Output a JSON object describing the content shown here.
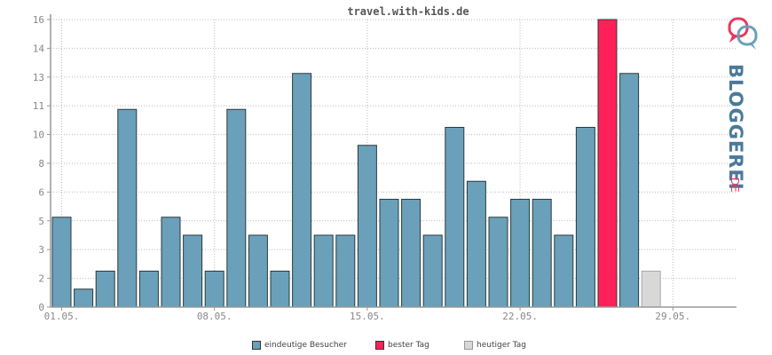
{
  "chart_data": {
    "type": "bar",
    "title": "travel.with-kids.de",
    "y_ticks": [
      "0",
      "2",
      "3",
      "5",
      "6",
      "8",
      "10",
      "11",
      "13",
      "14",
      "16"
    ],
    "ylim": [
      0,
      16
    ],
    "x_tick_labels": [
      "01.05.",
      "08.05.",
      "15.05.",
      "22.05.",
      "29.05."
    ],
    "categories": [
      "01.05.",
      "02.05.",
      "03.05.",
      "04.05.",
      "05.05.",
      "06.05.",
      "07.05.",
      "08.05.",
      "09.05.",
      "10.05.",
      "11.05.",
      "12.05.",
      "13.05.",
      "14.05.",
      "15.05.",
      "16.05.",
      "17.05.",
      "18.05.",
      "19.05.",
      "20.05.",
      "21.05.",
      "22.05.",
      "23.05.",
      "24.05.",
      "25.05.",
      "26.05.",
      "27.05.",
      "28.05.",
      "29.05.",
      "30.05.",
      "31.05."
    ],
    "values": [
      5,
      1,
      2,
      11,
      2,
      5,
      4,
      2,
      11,
      4,
      2,
      13,
      4,
      4,
      9,
      6,
      6,
      4,
      10,
      7,
      5,
      6,
      6,
      4,
      10,
      16,
      13,
      2,
      0,
      0,
      0
    ],
    "best_day_index": 25,
    "today_index": 27,
    "grid": true,
    "legend_position": "bottom",
    "colors": {
      "visitors": "#6aa0b9",
      "best": "#ff2058",
      "today": "#d8d8d8",
      "bar_stroke": "#2b3a40",
      "today_stroke": "#a8a8a8",
      "grid": "#bbbbbb",
      "axis": "#999999"
    }
  },
  "legend": {
    "visitors_label": "eindeutige Besucher",
    "best_label": "bester Tag",
    "today_label": "heutiger Tag"
  },
  "logo": {
    "text": "BLOGGEREI",
    "suffix": ".DE"
  }
}
